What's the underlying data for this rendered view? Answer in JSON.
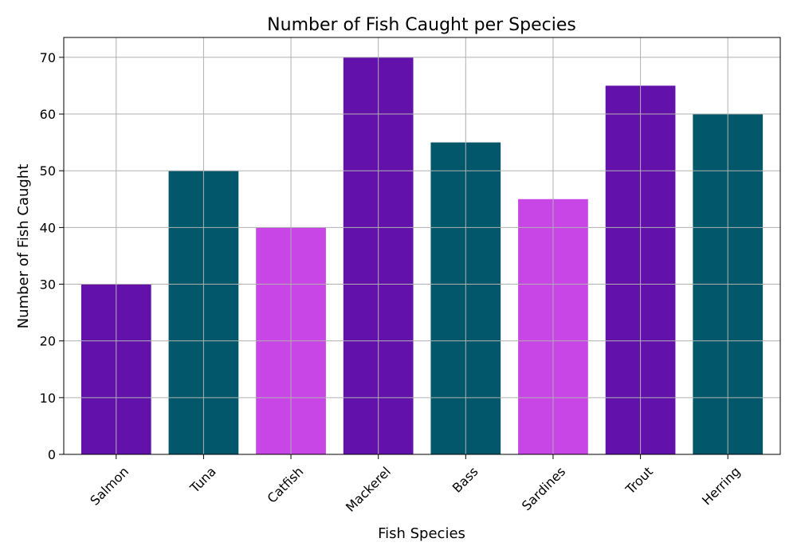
{
  "chart_data": {
    "type": "bar",
    "title": "Number of Fish Caught per Species",
    "xlabel": "Fish Species",
    "ylabel": "Number of Fish Caught",
    "categories": [
      "Salmon",
      "Tuna",
      "Catfish",
      "Mackerel",
      "Bass",
      "Sardines",
      "Trout",
      "Herring"
    ],
    "values": [
      30,
      50,
      40,
      70,
      55,
      45,
      65,
      60
    ],
    "bar_colors": [
      "#6212ab",
      "#02586a",
      "#c846e6",
      "#6212ab",
      "#02586a",
      "#c846e6",
      "#6212ab",
      "#02586a"
    ],
    "ylim": [
      0,
      73.5
    ],
    "yticks": [
      0,
      10,
      20,
      30,
      40,
      50,
      60,
      70
    ],
    "grid": true,
    "xtick_rotation": -45
  }
}
